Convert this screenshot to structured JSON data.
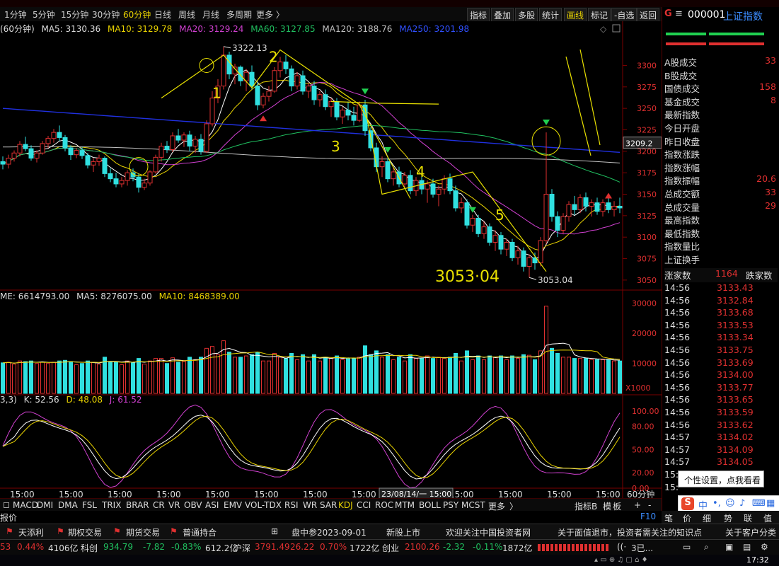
{
  "period_tabs": [
    "1分钟",
    "5分钟",
    "15分钟",
    "30分钟",
    "60分钟",
    "日线",
    "周线",
    "月线",
    "多周期",
    "更多 〉"
  ],
  "active_period": "60分钟",
  "toolbar_right": [
    "指标",
    "叠加",
    "多股",
    "统计",
    "画线",
    "标记",
    "-自选",
    "返回"
  ],
  "active_tool": "画线",
  "ma_legend": {
    "prefix": "(60分钟)",
    "ma5": "MA5: 3130.36",
    "ma10": "MA10: 3129.78",
    "ma20": "MA20: 3129.24",
    "ma60": "MA60: 3127.85",
    "ma120": "MA120: 3188.76",
    "ma250": "MA250: 3201.98"
  },
  "vol_legend": {
    "vol": "ME: 6614793.00",
    "ma5": "MA5: 8276075.00",
    "ma10": "MA10: 8468389.00"
  },
  "kdj_legend": {
    "params": "3,3)",
    "k": "K: 52.56",
    "d": "D: 48.08",
    "j": "J: 61.52"
  },
  "price_axis": {
    "ticks": [
      "3300",
      "3275",
      "3250",
      "3225",
      "3200",
      "3175",
      "3150",
      "3125",
      "3100",
      "3075",
      "3050"
    ],
    "current": "3209.2"
  },
  "vol_axis": {
    "ticks": [
      "30000",
      "20000",
      "10000"
    ],
    "unit": "X1000"
  },
  "kdj_axis": {
    "ticks": [
      "100.00",
      "80.00",
      "50.00",
      "20.00",
      "0.00"
    ]
  },
  "time_axis": {
    "labels": [
      "15:00",
      "15:00",
      "15:00",
      "15:00",
      "15:00",
      "15:00",
      "15:00",
      "15:00",
      "15:00",
      "15:00",
      "15:00",
      "15:00",
      "15:00"
    ],
    "crosshair_label": "23/08/14/一 15:00",
    "period_label": "60分钟"
  },
  "annotations": {
    "high_label": "3322.13",
    "low_label": "3053.04",
    "big_low": "3053·04",
    "wave_1": "1",
    "wave_2": "2",
    "wave_3": "3",
    "wave_4": "4",
    "wave_5": "5"
  },
  "colors": {
    "up": "#e03030",
    "down": "#30e0e0",
    "ma5": "#ffffff",
    "ma10": "#e8d200",
    "ma20": "#d040d0",
    "ma60": "#20c060",
    "ma120": "#c0c0c0",
    "ma250": "#2030e0",
    "drawing": "#e8e000"
  },
  "chart_data": {
    "type": "candlestick",
    "title": "",
    "price_range": [
      3045,
      3320
    ],
    "candles": [
      [
        3188,
        3194,
        3179,
        3185
      ],
      [
        3185,
        3196,
        3180,
        3192
      ],
      [
        3192,
        3201,
        3188,
        3198
      ],
      [
        3198,
        3212,
        3194,
        3208
      ],
      [
        3208,
        3217,
        3200,
        3203
      ],
      [
        3203,
        3207,
        3189,
        3192
      ],
      [
        3192,
        3201,
        3187,
        3198
      ],
      [
        3198,
        3212,
        3196,
        3209
      ],
      [
        3209,
        3218,
        3204,
        3215
      ],
      [
        3215,
        3226,
        3210,
        3222
      ],
      [
        3222,
        3230,
        3212,
        3216
      ],
      [
        3216,
        3219,
        3200,
        3204
      ],
      [
        3204,
        3207,
        3190,
        3196
      ],
      [
        3196,
        3204,
        3192,
        3201
      ],
      [
        3201,
        3205,
        3191,
        3195
      ],
      [
        3195,
        3198,
        3180,
        3184
      ],
      [
        3184,
        3192,
        3176,
        3188
      ],
      [
        3188,
        3196,
        3183,
        3192
      ],
      [
        3192,
        3194,
        3170,
        3174
      ],
      [
        3174,
        3180,
        3164,
        3168
      ],
      [
        3168,
        3175,
        3158,
        3162
      ],
      [
        3162,
        3170,
        3158,
        3166
      ],
      [
        3166,
        3178,
        3160,
        3175
      ],
      [
        3175,
        3180,
        3165,
        3170
      ],
      [
        3170,
        3174,
        3152,
        3158
      ],
      [
        3158,
        3168,
        3155,
        3163
      ],
      [
        3163,
        3178,
        3160,
        3176
      ],
      [
        3176,
        3196,
        3174,
        3193
      ],
      [
        3193,
        3210,
        3188,
        3206
      ],
      [
        3206,
        3212,
        3198,
        3202
      ],
      [
        3202,
        3222,
        3199,
        3218
      ],
      [
        3218,
        3226,
        3210,
        3213
      ],
      [
        3213,
        3222,
        3205,
        3219
      ],
      [
        3219,
        3224,
        3200,
        3206
      ],
      [
        3206,
        3218,
        3198,
        3214
      ],
      [
        3214,
        3220,
        3196,
        3200
      ],
      [
        3200,
        3236,
        3198,
        3232
      ],
      [
        3232,
        3270,
        3229,
        3262
      ],
      [
        3262,
        3284,
        3256,
        3276
      ],
      [
        3276,
        3322,
        3272,
        3312
      ],
      [
        3312,
        3316,
        3284,
        3290
      ],
      [
        3290,
        3302,
        3278,
        3298
      ],
      [
        3298,
        3300,
        3276,
        3282
      ],
      [
        3282,
        3296,
        3270,
        3292
      ],
      [
        3292,
        3300,
        3272,
        3276
      ],
      [
        3276,
        3280,
        3248,
        3254
      ],
      [
        3254,
        3268,
        3250,
        3264
      ],
      [
        3264,
        3276,
        3258,
        3270
      ],
      [
        3270,
        3298,
        3268,
        3294
      ],
      [
        3294,
        3310,
        3286,
        3304
      ],
      [
        3304,
        3312,
        3290,
        3296
      ],
      [
        3296,
        3300,
        3270,
        3276
      ],
      [
        3276,
        3292,
        3272,
        3288
      ],
      [
        3288,
        3294,
        3266,
        3270
      ],
      [
        3270,
        3280,
        3262,
        3276
      ],
      [
        3276,
        3282,
        3254,
        3260
      ],
      [
        3260,
        3270,
        3252,
        3266
      ],
      [
        3266,
        3272,
        3248,
        3252
      ],
      [
        3252,
        3262,
        3240,
        3258
      ],
      [
        3258,
        3262,
        3236,
        3240
      ],
      [
        3240,
        3252,
        3232,
        3248
      ],
      [
        3248,
        3258,
        3236,
        3242
      ],
      [
        3242,
        3252,
        3230,
        3236
      ],
      [
        3236,
        3258,
        3234,
        3254
      ],
      [
        3254,
        3260,
        3218,
        3224
      ],
      [
        3224,
        3228,
        3200,
        3204
      ],
      [
        3204,
        3210,
        3176,
        3182
      ],
      [
        3182,
        3194,
        3170,
        3188
      ],
      [
        3188,
        3192,
        3164,
        3168
      ],
      [
        3168,
        3180,
        3160,
        3176
      ],
      [
        3176,
        3182,
        3158,
        3162
      ],
      [
        3162,
        3176,
        3158,
        3172
      ],
      [
        3172,
        3178,
        3150,
        3154
      ],
      [
        3154,
        3170,
        3148,
        3166
      ],
      [
        3166,
        3172,
        3150,
        3156
      ],
      [
        3156,
        3166,
        3140,
        3162
      ],
      [
        3162,
        3168,
        3146,
        3150
      ],
      [
        3150,
        3160,
        3136,
        3156
      ],
      [
        3156,
        3172,
        3150,
        3168
      ],
      [
        3168,
        3174,
        3150,
        3154
      ],
      [
        3154,
        3160,
        3130,
        3134
      ],
      [
        3134,
        3146,
        3128,
        3140
      ],
      [
        3140,
        3144,
        3110,
        3114
      ],
      [
        3114,
        3126,
        3106,
        3122
      ],
      [
        3122,
        3126,
        3100,
        3104
      ],
      [
        3104,
        3118,
        3098,
        3112
      ],
      [
        3112,
        3116,
        3090,
        3094
      ],
      [
        3094,
        3108,
        3084,
        3102
      ],
      [
        3102,
        3106,
        3080,
        3086
      ],
      [
        3086,
        3098,
        3078,
        3094
      ],
      [
        3094,
        3098,
        3072,
        3076
      ],
      [
        3076,
        3090,
        3068,
        3084
      ],
      [
        3084,
        3088,
        3060,
        3066
      ],
      [
        3066,
        3080,
        3053,
        3076
      ],
      [
        3076,
        3082,
        3062,
        3070
      ],
      [
        3070,
        3100,
        3066,
        3096
      ],
      [
        3096,
        3222,
        3092,
        3150
      ],
      [
        3150,
        3156,
        3118,
        3124
      ],
      [
        3124,
        3130,
        3100,
        3108
      ],
      [
        3108,
        3128,
        3104,
        3124
      ],
      [
        3124,
        3142,
        3118,
        3138
      ],
      [
        3138,
        3148,
        3126,
        3132
      ],
      [
        3132,
        3150,
        3128,
        3146
      ],
      [
        3146,
        3152,
        3130,
        3136
      ],
      [
        3136,
        3144,
        3124,
        3140
      ],
      [
        3140,
        3146,
        3126,
        3130
      ],
      [
        3130,
        3144,
        3124,
        3140
      ],
      [
        3140,
        3148,
        3128,
        3132
      ],
      [
        3132,
        3142,
        3124,
        3136
      ],
      [
        3136,
        3146,
        3128,
        3134
      ]
    ]
  },
  "right_panel": {
    "code": "000001",
    "name": "上证指数",
    "stats": [
      {
        "label": "A股成交",
        "value": "33"
      },
      {
        "label": "B股成交",
        "value": ""
      },
      {
        "label": "国债成交",
        "value": "158"
      },
      {
        "label": "基金成交",
        "value": "8"
      },
      {
        "label": "最新指数",
        "value": ""
      },
      {
        "label": "今日开盘",
        "value": ""
      },
      {
        "label": "昨日收盘",
        "value": ""
      },
      {
        "label": "指数涨跌",
        "value": ""
      },
      {
        "label": "指数涨幅",
        "value": ""
      },
      {
        "label": "指数振幅",
        "value": "20.6"
      },
      {
        "label": "总成交额",
        "value": "33"
      },
      {
        "label": "总成交量",
        "value": "29"
      },
      {
        "label": "最高指数",
        "value": ""
      },
      {
        "label": "最低指数",
        "value": ""
      },
      {
        "label": "指数量比",
        "value": ""
      },
      {
        "label": "上证换手",
        "value": ""
      }
    ],
    "updown": {
      "label": "涨家数",
      "count": "1164",
      "down_label": "跌家数"
    },
    "ticks": [
      [
        "14:56",
        "3133.43"
      ],
      [
        "14:56",
        "3132.84"
      ],
      [
        "14:56",
        "3133.68"
      ],
      [
        "14:56",
        "3133.53"
      ],
      [
        "14:56",
        "3133.34"
      ],
      [
        "14:56",
        "3133.75"
      ],
      [
        "14:56",
        "3133.69"
      ],
      [
        "14:56",
        "3134.00"
      ],
      [
        "14:56",
        "3133.77"
      ],
      [
        "14:56",
        "3133.65"
      ],
      [
        "14:56",
        "3133.59"
      ],
      [
        "14:56",
        "3133.62"
      ],
      [
        "14:57",
        "3134.02"
      ],
      [
        "14:57",
        "3134.09"
      ],
      [
        "14:57",
        "3134.05"
      ],
      [
        "15:",
        ""
      ],
      [
        "15:",
        ""
      ]
    ],
    "tabs": [
      "笔",
      "价",
      "细",
      "势",
      "联",
      "值"
    ]
  },
  "tooltip": "个性设置，点我看看",
  "indicators": [
    "MACD",
    "DMI",
    "DMA",
    "FSL",
    "TRIX",
    "BRAR",
    "CR",
    "VR",
    "OBV",
    "ASI",
    "EMV",
    "VOL-TDX",
    "RSI",
    "WR",
    "SAR",
    "KDJ",
    "CCI",
    "ROC",
    "MTM",
    "BOLL",
    "PSY",
    "MCST",
    "更多",
    "〉"
  ],
  "active_indicator": "KDJ",
  "indicator_right": [
    "指标B",
    "模",
    "板",
    "+",
    "-"
  ],
  "status1": {
    "label": "报价",
    "key": "F10"
  },
  "status2": [
    "天添利",
    "期权交易",
    "期货交易",
    "普通持合",
    "盘中参2023-09-01",
    "新股上市",
    "欢迎关注中国投资者网",
    "关于面值退市，投资者需关注的知识点",
    "关于客户分类"
  ],
  "status3": {
    "a": "53",
    "b": "0.44%",
    "c": "4106亿",
    "d": "科创",
    "e": "934.79",
    "f": "-7.82",
    "g": "-0.83%",
    "h": "612.2亿",
    "i": "沪深",
    "j": "3791.49",
    "k": "26.22",
    "l": "0.70%",
    "m": "1722亿",
    "n": "创业",
    "o": "2100.26",
    "p": "-2.32",
    "q": "-0.11%",
    "r": "1872亿",
    "s": "3已..."
  },
  "clock": "17:32"
}
